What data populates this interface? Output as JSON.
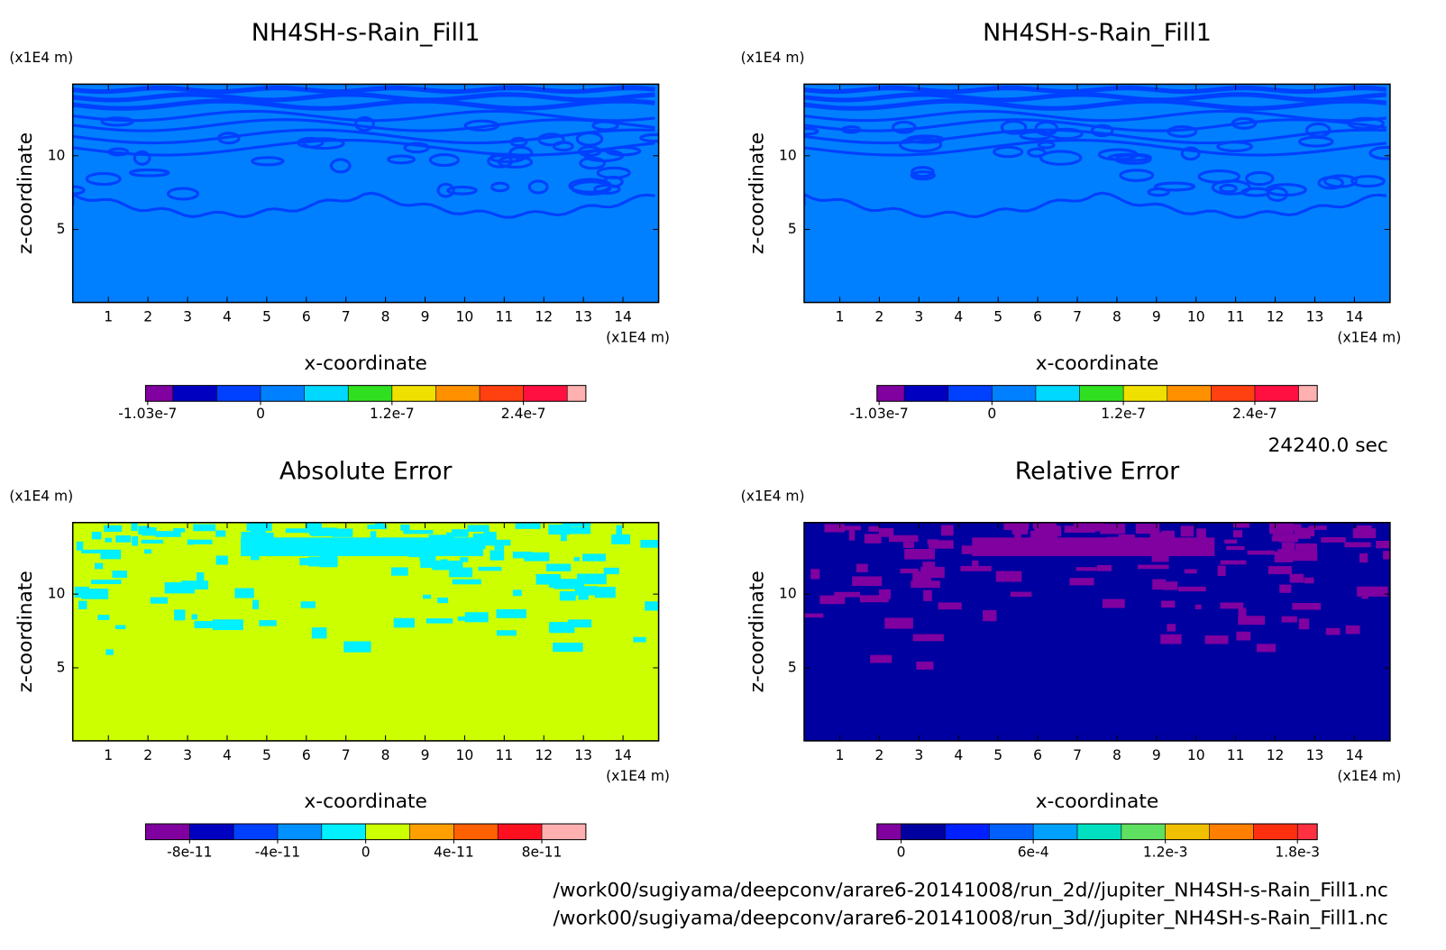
{
  "panels": [
    {
      "title": "NH4SH-s-Rain_Fill1",
      "x_label": "x-coordinate",
      "y_label": "z-coordinate",
      "x_unit": "(x1E4 m)",
      "y_unit": "(x1E4 m)",
      "xlim": [
        0.1,
        14.9
      ],
      "ylim": [
        0.05,
        14.85
      ],
      "xticks": [
        1,
        2,
        3,
        4,
        5,
        6,
        7,
        8,
        9,
        10,
        11,
        12,
        13,
        14
      ],
      "yticks": [
        5,
        10
      ],
      "colorbar": {
        "clim": [
          -1.05e-07,
          2.97e-07
        ],
        "levels": [
          -8e-08,
          -4e-08,
          0,
          4e-08,
          8e-08,
          1.2e-07,
          1.6e-07,
          2e-07,
          2.4e-07,
          2.8e-07
        ],
        "colors": [
          "#8000a0",
          "#0000c0",
          "#0040ff",
          "#0080ff",
          "#00d8ff",
          "#30e020",
          "#f0e000",
          "#ff9000",
          "#ff4010",
          "#ff1040",
          "#ffb0b0"
        ],
        "ticks": [
          {
            "value": -1.03e-07,
            "label": "-1.03e-7"
          },
          {
            "value": 0,
            "label": "0"
          },
          {
            "value": 1.2e-07,
            "label": "1.2e-7"
          },
          {
            "value": 2.4e-07,
            "label": "2.4e-7"
          }
        ]
      }
    },
    {
      "title": "NH4SH-s-Rain_Fill1",
      "x_label": "x-coordinate",
      "y_label": "z-coordinate",
      "x_unit": "(x1E4 m)",
      "y_unit": "(x1E4 m)",
      "xlim": [
        0.1,
        14.9
      ],
      "ylim": [
        0.05,
        14.85
      ],
      "xticks": [
        1,
        2,
        3,
        4,
        5,
        6,
        7,
        8,
        9,
        10,
        11,
        12,
        13,
        14
      ],
      "yticks": [
        5,
        10
      ],
      "colorbar": {
        "clim": [
          -1.05e-07,
          2.97e-07
        ],
        "levels": [
          -8e-08,
          -4e-08,
          0,
          4e-08,
          8e-08,
          1.2e-07,
          1.6e-07,
          2e-07,
          2.4e-07,
          2.8e-07
        ],
        "colors": [
          "#8000a0",
          "#0000c0",
          "#0040ff",
          "#0080ff",
          "#00d8ff",
          "#30e020",
          "#f0e000",
          "#ff9000",
          "#ff4010",
          "#ff1040",
          "#ffb0b0"
        ],
        "ticks": [
          {
            "value": -1.03e-07,
            "label": "-1.03e-7"
          },
          {
            "value": 0,
            "label": "0"
          },
          {
            "value": 1.2e-07,
            "label": "1.2e-7"
          },
          {
            "value": 2.4e-07,
            "label": "2.4e-7"
          }
        ]
      }
    },
    {
      "title": "Absolute Error",
      "x_label": "x-coordinate",
      "y_label": "z-coordinate",
      "x_unit": "(x1E4 m)",
      "y_unit": "(x1E4 m)",
      "xlim": [
        0.1,
        14.9
      ],
      "ylim": [
        0.05,
        14.85
      ],
      "xticks": [
        1,
        2,
        3,
        4,
        5,
        6,
        7,
        8,
        9,
        10,
        11,
        12,
        13,
        14
      ],
      "yticks": [
        5,
        10
      ],
      "colorbar": {
        "clim": [
          -1e-10,
          1e-10
        ],
        "levels": [
          -8e-11,
          -6e-11,
          -4e-11,
          -2e-11,
          0,
          2e-11,
          4e-11,
          6e-11,
          8e-11
        ],
        "colors": [
          "#8000a0",
          "#0000c0",
          "#0040ff",
          "#0090ff",
          "#00f0ff",
          "#ccff00",
          "#ffa000",
          "#ff6000",
          "#ff1020",
          "#ffb0b0"
        ],
        "ticks": [
          {
            "value": -8e-11,
            "label": "-8e-11"
          },
          {
            "value": -4e-11,
            "label": "-4e-11"
          },
          {
            "value": 0,
            "label": "0"
          },
          {
            "value": 4e-11,
            "label": "4e-11"
          },
          {
            "value": 8e-11,
            "label": "8e-11"
          }
        ]
      }
    },
    {
      "title": "Relative Error",
      "x_label": "x-coordinate",
      "y_label": "z-coordinate",
      "x_unit": "(x1E4 m)",
      "y_unit": "(x1E4 m)",
      "xlim": [
        0.1,
        14.9
      ],
      "ylim": [
        0.05,
        14.85
      ],
      "xticks": [
        1,
        2,
        3,
        4,
        5,
        6,
        7,
        8,
        9,
        10,
        11,
        12,
        13,
        14
      ],
      "yticks": [
        5,
        10
      ],
      "colorbar": {
        "clim": [
          -0.00011,
          0.00189
        ],
        "levels": [
          0,
          0.0002,
          0.0004,
          0.0006,
          0.0008,
          0.001,
          0.0012,
          0.0014,
          0.0016,
          0.0018
        ],
        "colors": [
          "#8000a0",
          "#0000a0",
          "#0020ff",
          "#0060ff",
          "#00a0ff",
          "#00e0c0",
          "#60e060",
          "#f0c000",
          "#ff8000",
          "#ff3010",
          "#ff3040",
          "#ffb0b0"
        ],
        "ticks": [
          {
            "value": 0,
            "label": "0"
          },
          {
            "value": 0.0006,
            "label": "6e-4"
          },
          {
            "value": 0.0012,
            "label": "1.2e-3"
          },
          {
            "value": 0.0018,
            "label": "1.8e-3"
          }
        ]
      }
    }
  ],
  "time": "24240.0 sec",
  "files": [
    "/work00/sugiyama/deepconv/arare6-20141008/run_2d//jupiter_NH4SH-s-Rain_Fill1.nc",
    "/work00/sugiyama/deepconv/arare6-20141008/run_3d//jupiter_NH4SH-s-Rain_Fill1.nc"
  ]
}
